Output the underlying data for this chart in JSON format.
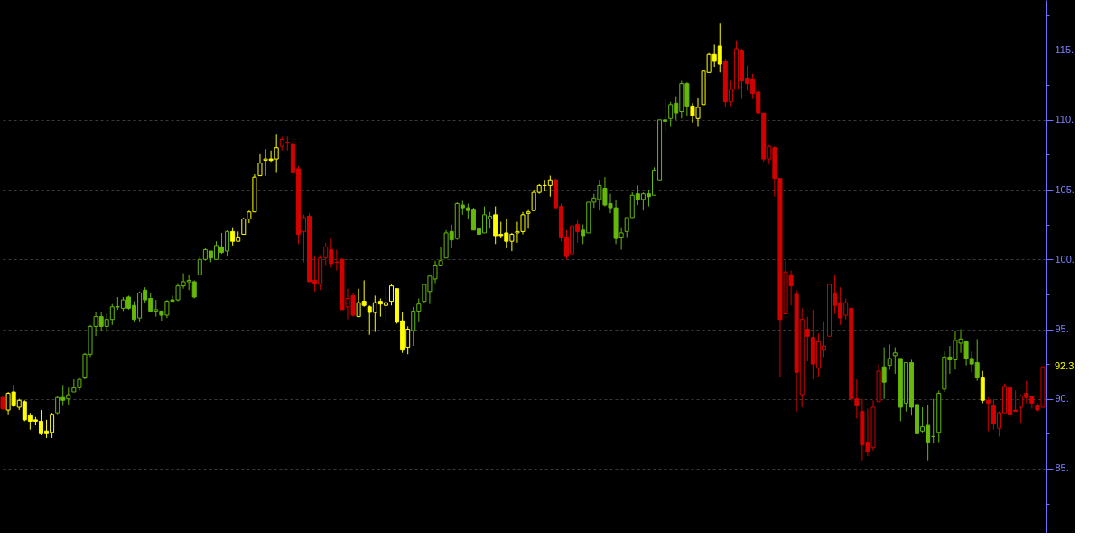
{
  "chart_data": {
    "type": "candlestick",
    "categories": [
      null,
      null,
      null,
      null,
      null,
      null,
      null,
      null,
      null,
      null,
      null,
      null,
      null,
      null,
      null,
      null,
      null,
      null,
      null,
      null,
      null,
      null,
      null,
      null,
      null,
      null,
      null,
      null,
      null,
      null,
      null,
      null,
      null,
      null,
      null,
      null,
      null,
      null,
      null,
      null,
      null,
      null,
      null,
      null,
      null,
      null,
      null,
      null,
      null,
      null,
      null,
      null,
      null,
      null,
      null,
      null,
      null,
      null,
      null,
      null,
      null,
      null,
      null,
      null,
      null,
      null,
      null,
      null,
      null,
      null,
      null,
      null,
      null,
      null,
      null,
      null,
      null,
      null,
      null,
      null,
      null,
      null,
      null,
      null,
      null,
      null,
      null,
      null,
      null,
      null,
      null,
      null,
      null,
      null,
      null,
      null,
      null,
      null,
      null,
      null,
      null,
      null,
      null,
      null,
      null,
      null,
      null,
      null,
      null,
      null,
      null,
      null,
      null,
      null,
      null,
      null,
      null,
      null,
      null,
      null,
      null,
      null,
      null,
      null,
      null,
      null,
      null,
      null,
      null,
      null,
      null,
      null,
      null,
      null,
      null,
      null,
      null,
      null,
      null,
      null,
      null,
      null,
      null,
      null,
      null,
      null,
      null,
      null,
      null,
      null,
      null,
      null,
      null,
      null,
      null,
      null,
      null,
      null,
      null,
      null,
      null,
      null,
      null,
      null,
      null,
      null,
      null,
      null,
      null,
      null,
      null,
      null,
      null,
      null,
      null,
      null,
      null,
      null,
      null,
      null,
      null,
      null,
      null,
      null,
      null,
      null,
      null,
      null,
      null,
      null,
      null
    ],
    "ohlc": [
      [
        90.1,
        90.2,
        89.2,
        89.3
      ],
      [
        89.2,
        90.5,
        88.9,
        90.4
      ],
      [
        90.5,
        91.0,
        89.4,
        89.5
      ],
      [
        89.4,
        90.0,
        89.2,
        89.9
      ],
      [
        89.8,
        89.9,
        88.4,
        88.5
      ],
      [
        88.8,
        89.0,
        87.8,
        88.4
      ],
      [
        88.5,
        88.7,
        88.1,
        88.4
      ],
      [
        88.4,
        89.2,
        87.4,
        87.5
      ],
      [
        87.7,
        88.5,
        87.2,
        87.5
      ],
      [
        87.6,
        89.0,
        87.2,
        88.9
      ],
      [
        89.0,
        90.2,
        88.9,
        90.1
      ],
      [
        90.1,
        91.0,
        89.5,
        89.9
      ],
      [
        90.0,
        90.8,
        89.6,
        90.3
      ],
      [
        90.5,
        91.4,
        90.5,
        90.8
      ],
      [
        90.8,
        91.5,
        90.6,
        91.4
      ],
      [
        91.5,
        93.3,
        91.4,
        93.2
      ],
      [
        93.2,
        95.3,
        93.0,
        95.2
      ],
      [
        95.2,
        96.2,
        94.5,
        95.9
      ],
      [
        95.9,
        96.2,
        94.9,
        95.2
      ],
      [
        95.2,
        96.1,
        94.8,
        95.7
      ],
      [
        95.7,
        96.8,
        95.3,
        96.6
      ],
      [
        96.6,
        97.3,
        96.4,
        96.6
      ],
      [
        96.5,
        97.3,
        96.3,
        97.1
      ],
      [
        97.3,
        97.4,
        96.4,
        96.5
      ],
      [
        96.7,
        97.0,
        95.5,
        95.7
      ],
      [
        95.8,
        97.7,
        95.5,
        97.6
      ],
      [
        97.8,
        98.0,
        96.9,
        97.1
      ],
      [
        97.2,
        97.6,
        96.2,
        96.3
      ],
      [
        96.3,
        97.1,
        95.9,
        96.4
      ],
      [
        96.3,
        96.3,
        95.6,
        96.0
      ],
      [
        96.0,
        97.1,
        95.8,
        97.0
      ],
      [
        97.1,
        97.4,
        97.0,
        97.0
      ],
      [
        97.1,
        98.3,
        97.0,
        98.1
      ],
      [
        98.1,
        99.0,
        97.9,
        98.4
      ],
      [
        98.4,
        98.9,
        97.8,
        98.5
      ],
      [
        98.4,
        98.5,
        97.2,
        97.3
      ],
      [
        98.9,
        100.2,
        98.9,
        100.0
      ],
      [
        100.0,
        100.8,
        99.9,
        100.7
      ],
      [
        100.6,
        100.6,
        99.8,
        100.1
      ],
      [
        100.0,
        101.3,
        100.0,
        101.0
      ],
      [
        100.9,
        101.9,
        100.4,
        100.5
      ],
      [
        100.6,
        102.1,
        100.2,
        102.0
      ],
      [
        102.0,
        102.3,
        101.0,
        101.3
      ],
      [
        101.3,
        102.0,
        101.3,
        101.6
      ],
      [
        101.8,
        103.0,
        101.8,
        102.9
      ],
      [
        102.9,
        103.5,
        102.6,
        103.4
      ],
      [
        103.4,
        106.1,
        103.4,
        105.9
      ],
      [
        106.0,
        107.6,
        106.0,
        106.9
      ],
      [
        107.1,
        107.9,
        106.0,
        107.2
      ],
      [
        107.2,
        107.8,
        107.0,
        107.1
      ],
      [
        107.2,
        109.0,
        106.2,
        108.0
      ],
      [
        108.1,
        108.8,
        107.8,
        108.6
      ],
      [
        108.4,
        108.8,
        107.8,
        108.4
      ],
      [
        108.3,
        108.5,
        106.2,
        106.2
      ],
      [
        106.5,
        106.7,
        101.1,
        101.8
      ],
      [
        102.0,
        103.2,
        99.8,
        103.0
      ],
      [
        103.1,
        103.3,
        98.4,
        98.4
      ],
      [
        98.5,
        100.3,
        97.7,
        98.3
      ],
      [
        98.2,
        100.3,
        97.8,
        100.1
      ],
      [
        100.1,
        101.2,
        99.6,
        100.9
      ],
      [
        100.7,
        101.5,
        99.4,
        99.7
      ],
      [
        99.8,
        100.7,
        99.2,
        99.8
      ],
      [
        100.0,
        100.1,
        96.4,
        96.4
      ],
      [
        96.6,
        97.9,
        95.7,
        97.2
      ],
      [
        97.4,
        97.6,
        95.9,
        96.0
      ],
      [
        95.9,
        97.9,
        95.9,
        96.9
      ],
      [
        97.0,
        98.5,
        96.6,
        96.7
      ],
      [
        96.6,
        96.7,
        94.6,
        96.2
      ],
      [
        96.2,
        97.4,
        94.8,
        96.9
      ],
      [
        97.0,
        97.2,
        95.9,
        96.8
      ],
      [
        96.7,
        98.0,
        95.5,
        96.9
      ],
      [
        97.0,
        98.2,
        96.7,
        98.1
      ],
      [
        97.9,
        97.9,
        95.4,
        95.5
      ],
      [
        95.6,
        96.2,
        93.3,
        93.5
      ],
      [
        93.7,
        95.2,
        93.2,
        95.0
      ],
      [
        94.9,
        96.6,
        93.8,
        96.3
      ],
      [
        96.3,
        97.2,
        95.5,
        96.8
      ],
      [
        97.0,
        98.2,
        96.9,
        98.2
      ],
      [
        97.7,
        98.8,
        96.8,
        98.8
      ],
      [
        98.6,
        99.9,
        98.3,
        99.6
      ],
      [
        99.6,
        100.9,
        99.6,
        99.9
      ],
      [
        100.1,
        102.1,
        100.1,
        101.9
      ],
      [
        102.0,
        102.5,
        100.8,
        101.4
      ],
      [
        101.5,
        104.1,
        101.4,
        104.0
      ],
      [
        103.9,
        104.2,
        103.2,
        103.7
      ],
      [
        103.7,
        104.0,
        102.9,
        103.5
      ],
      [
        103.6,
        103.7,
        102.1,
        102.1
      ],
      [
        102.2,
        102.5,
        101.4,
        101.8
      ],
      [
        101.9,
        103.8,
        101.9,
        103.2
      ],
      [
        102.9,
        103.4,
        102.2,
        103.1
      ],
      [
        103.2,
        103.8,
        101.1,
        101.7
      ],
      [
        101.8,
        102.7,
        101.5,
        101.7
      ],
      [
        101.9,
        102.9,
        100.8,
        101.3
      ],
      [
        101.3,
        101.9,
        100.6,
        101.8
      ],
      [
        101.9,
        102.7,
        101.2,
        102.0
      ],
      [
        102.0,
        103.4,
        101.8,
        103.2
      ],
      [
        103.3,
        103.6,
        102.2,
        103.4
      ],
      [
        103.5,
        105.0,
        103.5,
        104.8
      ],
      [
        104.8,
        105.4,
        104.7,
        105.3
      ],
      [
        105.3,
        105.7,
        104.9,
        105.3
      ],
      [
        105.3,
        106.0,
        104.5,
        105.7
      ],
      [
        105.7,
        105.8,
        103.7,
        103.7
      ],
      [
        103.8,
        104.0,
        101.3,
        101.6
      ],
      [
        101.6,
        102.1,
        100.0,
        100.2
      ],
      [
        100.4,
        102.4,
        100.4,
        102.4
      ],
      [
        102.5,
        102.8,
        101.2,
        102.0
      ],
      [
        102.1,
        102.5,
        101.1,
        101.7
      ],
      [
        101.9,
        104.1,
        101.9,
        104.1
      ],
      [
        104.1,
        104.7,
        103.7,
        104.4
      ],
      [
        104.3,
        105.7,
        103.5,
        105.3
      ],
      [
        105.1,
        105.9,
        103.8,
        103.9
      ],
      [
        104.0,
        104.7,
        103.3,
        103.7
      ],
      [
        103.7,
        104.3,
        101.1,
        101.5
      ],
      [
        101.6,
        102.3,
        100.7,
        101.9
      ],
      [
        102.0,
        103.0,
        101.6,
        103.0
      ],
      [
        103.0,
        104.8,
        103.0,
        104.6
      ],
      [
        104.7,
        105.3,
        103.9,
        104.3
      ],
      [
        104.3,
        104.8,
        103.5,
        104.7
      ],
      [
        104.7,
        105.0,
        103.8,
        104.5
      ],
      [
        104.6,
        106.6,
        104.6,
        106.4
      ],
      [
        105.7,
        110.0,
        105.7,
        110.0
      ],
      [
        110.0,
        111.5,
        109.2,
        109.9
      ],
      [
        110.1,
        111.3,
        109.5,
        111.1
      ],
      [
        111.2,
        111.7,
        110.0,
        110.5
      ],
      [
        110.6,
        112.8,
        110.1,
        112.6
      ],
      [
        112.6,
        112.7,
        110.3,
        111.0
      ],
      [
        111.0,
        111.2,
        109.8,
        110.3
      ],
      [
        110.1,
        111.6,
        109.5,
        110.9
      ],
      [
        111.1,
        113.5,
        111.1,
        113.5
      ],
      [
        113.4,
        114.8,
        113.4,
        114.7
      ],
      [
        114.7,
        115.4,
        113.8,
        114.2
      ],
      [
        115.3,
        116.9,
        113.4,
        114.0
      ],
      [
        114.2,
        114.4,
        110.9,
        111.3
      ],
      [
        111.3,
        112.8,
        111.0,
        112.2
      ],
      [
        112.2,
        115.7,
        112.2,
        115.1
      ],
      [
        115.0,
        115.1,
        111.5,
        112.8
      ],
      [
        113.0,
        113.9,
        112.1,
        112.6
      ],
      [
        112.9,
        113.3,
        111.5,
        111.9
      ],
      [
        112.0,
        112.6,
        110.4,
        110.5
      ],
      [
        110.5,
        110.5,
        107.0,
        107.2
      ],
      [
        107.2,
        108.2,
        106.8,
        108.1
      ],
      [
        108.0,
        108.1,
        104.5,
        105.8
      ],
      [
        105.8,
        105.8,
        91.6,
        95.7
      ],
      [
        96.1,
        99.9,
        96.1,
        99.1
      ],
      [
        98.9,
        99.2,
        96.7,
        98.1
      ],
      [
        97.5,
        97.8,
        89.1,
        91.9
      ],
      [
        90.3,
        96.5,
        89.4,
        95.7
      ],
      [
        95.0,
        95.9,
        92.7,
        94.5
      ],
      [
        94.4,
        96.4,
        91.4,
        92.5
      ],
      [
        92.2,
        94.7,
        91.6,
        94.1
      ],
      [
        93.5,
        95.5,
        93.0,
        93.8
      ],
      [
        94.5,
        98.2,
        94.5,
        98.2
      ],
      [
        97.6,
        98.9,
        96.1,
        96.7
      ],
      [
        96.9,
        98.0,
        95.3,
        95.8
      ],
      [
        96.0,
        97.2,
        95.7,
        96.9
      ],
      [
        96.5,
        96.5,
        89.8,
        90.0
      ],
      [
        90.0,
        91.4,
        88.6,
        89.5
      ],
      [
        89.1,
        90.0,
        85.6,
        86.7
      ],
      [
        86.9,
        89.3,
        85.9,
        86.2
      ],
      [
        86.5,
        89.9,
        86.3,
        89.4
      ],
      [
        89.8,
        92.5,
        89.8,
        92.0
      ],
      [
        92.3,
        93.7,
        90.0,
        91.2
      ],
      [
        92.4,
        93.9,
        92.1,
        92.9
      ],
      [
        93.1,
        93.7,
        91.8,
        93.3
      ],
      [
        92.9,
        92.9,
        88.4,
        89.4
      ],
      [
        89.7,
        92.6,
        89.1,
        92.6
      ],
      [
        92.6,
        92.8,
        88.8,
        89.4
      ],
      [
        89.6,
        90.0,
        86.7,
        87.5
      ],
      [
        87.7,
        89.4,
        87.6,
        88.0
      ],
      [
        88.1,
        89.6,
        85.6,
        86.9
      ],
      [
        87.3,
        90.0,
        86.8,
        87.3
      ],
      [
        87.6,
        90.6,
        86.9,
        90.4
      ],
      [
        90.7,
        93.4,
        90.5,
        93.0
      ],
      [
        93.0,
        93.8,
        91.8,
        92.8
      ],
      [
        92.8,
        94.9,
        92.1,
        94.2
      ],
      [
        94.0,
        95.0,
        93.3,
        94.3
      ],
      [
        94.1,
        94.1,
        92.4,
        92.9
      ],
      [
        92.9,
        93.4,
        91.9,
        92.5
      ],
      [
        92.6,
        94.3,
        91.3,
        91.5
      ],
      [
        91.5,
        92.0,
        89.7,
        89.9
      ],
      [
        89.9,
        90.1,
        87.7,
        89.7
      ],
      [
        89.5,
        90.0,
        87.8,
        88.2
      ],
      [
        87.9,
        89.1,
        87.3,
        89.0
      ],
      [
        89.0,
        91.1,
        89.0,
        90.9
      ],
      [
        90.8,
        91.1,
        88.4,
        88.9
      ],
      [
        89.2,
        90.6,
        89.1,
        89.1
      ],
      [
        89.4,
        90.3,
        88.3,
        90.2
      ],
      [
        90.4,
        91.3,
        89.7,
        90.1
      ],
      [
        90.2,
        90.2,
        89.3,
        89.7
      ],
      [
        89.5,
        89.7,
        89.1,
        89.2
      ],
      [
        89.4,
        92.3,
        89.4,
        92.3
      ]
    ],
    "colors": [
      "#d40000",
      "#ffff00",
      "#ffff00",
      "#ffff00",
      "#ffff00",
      "#ffff00",
      "#ffff00",
      "#ffff00",
      "#ffff00",
      "#ffff00",
      "#66b80a",
      "#66b80a",
      "#66b80a",
      "#66b80a",
      "#66b80a",
      "#66b80a",
      "#66b80a",
      "#66b80a",
      "#66b80a",
      "#66b80a",
      "#66b80a",
      "#66b80a",
      "#66b80a",
      "#66b80a",
      "#66b80a",
      "#66b80a",
      "#66b80a",
      "#66b80a",
      "#66b80a",
      "#66b80a",
      "#66b80a",
      "#66b80a",
      "#66b80a",
      "#66b80a",
      "#66b80a",
      "#66b80a",
      "#66b80a",
      "#66b80a",
      "#66b80a",
      "#66b80a",
      "#66b80a",
      "#66b80a",
      "#ffff00",
      "#ffff00",
      "#ffff00",
      "#ffff00",
      "#ffff00",
      "#ffff00",
      "#ffff00",
      "#ffff00",
      "#ffff00",
      "#d40000",
      "#d40000",
      "#d40000",
      "#d40000",
      "#d40000",
      "#d40000",
      "#d40000",
      "#d40000",
      "#d40000",
      "#d40000",
      "#d40000",
      "#d40000",
      "#d40000",
      "#d40000",
      "#ffff00",
      "#ffff00",
      "#ffff00",
      "#ffff00",
      "#ffff00",
      "#ffff00",
      "#ffff00",
      "#ffff00",
      "#ffff00",
      "#ffff00",
      "#66b80a",
      "#66b80a",
      "#66b80a",
      "#66b80a",
      "#66b80a",
      "#66b80a",
      "#66b80a",
      "#66b80a",
      "#66b80a",
      "#66b80a",
      "#66b80a",
      "#66b80a",
      "#66b80a",
      "#66b80a",
      "#66b80a",
      "#ffff00",
      "#ffff00",
      "#ffff00",
      "#ffff00",
      "#ffff00",
      "#ffff00",
      "#ffff00",
      "#ffff00",
      "#ffff00",
      "#ffff00",
      "#ffff00",
      "#d40000",
      "#d40000",
      "#d40000",
      "#d40000",
      "#d40000",
      "#66b80a",
      "#66b80a",
      "#66b80a",
      "#66b80a",
      "#66b80a",
      "#66b80a",
      "#66b80a",
      "#66b80a",
      "#66b80a",
      "#66b80a",
      "#66b80a",
      "#66b80a",
      "#66b80a",
      "#66b80a",
      "#66b80a",
      "#66b80a",
      "#66b80a",
      "#66b80a",
      "#66b80a",
      "#66b80a",
      "#ffff00",
      "#ffff00",
      "#ffff00",
      "#ffff00",
      "#ffff00",
      "#ffff00",
      "#d40000",
      "#d40000",
      "#d40000",
      "#d40000",
      "#d40000",
      "#d40000",
      "#d40000",
      "#d40000",
      "#d40000",
      "#d40000",
      "#d40000",
      "#d40000",
      "#d40000",
      "#d40000",
      "#d40000",
      "#d40000",
      "#d40000",
      "#d40000",
      "#d40000",
      "#d40000",
      "#d40000",
      "#d40000",
      "#d40000",
      "#d40000",
      "#d40000",
      "#d40000",
      "#d40000",
      "#d40000",
      "#d40000",
      "#66b80a",
      "#66b80a",
      "#66b80a",
      "#66b80a",
      "#66b80a",
      "#66b80a",
      "#66b80a",
      "#66b80a",
      "#66b80a",
      "#66b80a",
      "#66b80a",
      "#66b80a",
      "#66b80a",
      "#66b80a",
      "#66b80a",
      "#66b80a",
      "#66b80a",
      "#66b80a",
      "#ffff00",
      "#d40000",
      "#d40000",
      "#d40000",
      "#d40000",
      "#d40000",
      "#d40000",
      "#d40000",
      "#d40000",
      "#d40000",
      "#d40000",
      "#d40000"
    ],
    "ylim": [
      80.4,
      118.6
    ],
    "yticks": [
      {
        "value": 82.5,
        "label": null
      },
      {
        "value": 85,
        "label": "85."
      },
      {
        "value": 87.5,
        "label": null
      },
      {
        "value": 90,
        "label": "90."
      },
      {
        "value": 92.5,
        "label": null
      },
      {
        "value": 95,
        "label": "95."
      },
      {
        "value": 97.5,
        "label": null
      },
      {
        "value": 100,
        "label": "100."
      },
      {
        "value": 102.5,
        "label": null
      },
      {
        "value": 105,
        "label": "105."
      },
      {
        "value": 107.5,
        "label": null
      },
      {
        "value": 110,
        "label": "110."
      },
      {
        "value": 112.5,
        "label": null
      },
      {
        "value": 115,
        "label": "115."
      },
      {
        "value": 117.5,
        "label": null
      }
    ],
    "grid": "y",
    "tick_labels": "y",
    "annotations": [
      "92.3"
    ]
  }
}
